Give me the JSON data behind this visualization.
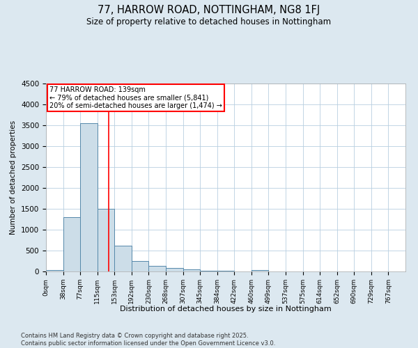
{
  "title1": "77, HARROW ROAD, NOTTINGHAM, NG8 1FJ",
  "title2": "Size of property relative to detached houses in Nottingham",
  "xlabel": "Distribution of detached houses by size in Nottingham",
  "ylabel": "Number of detached properties",
  "bin_labels": [
    "0sqm",
    "38sqm",
    "77sqm",
    "115sqm",
    "153sqm",
    "192sqm",
    "230sqm",
    "268sqm",
    "307sqm",
    "345sqm",
    "384sqm",
    "422sqm",
    "460sqm",
    "499sqm",
    "537sqm",
    "575sqm",
    "614sqm",
    "652sqm",
    "690sqm",
    "729sqm",
    "767sqm"
  ],
  "bar_heights": [
    30,
    1300,
    3550,
    1500,
    620,
    250,
    140,
    85,
    50,
    20,
    10,
    5,
    30,
    5,
    2,
    2,
    1,
    1,
    1,
    1,
    0
  ],
  "bar_color": "#ccdde8",
  "bar_edge_color": "#5588aa",
  "red_line_x": 3.65,
  "property_label": "77 HARROW ROAD: 139sqm",
  "annotation_line1": "← 79% of detached houses are smaller (5,841)",
  "annotation_line2": "20% of semi-detached houses are larger (1,474) →",
  "ylim": [
    0,
    4500
  ],
  "yticks": [
    0,
    500,
    1000,
    1500,
    2000,
    2500,
    3000,
    3500,
    4000,
    4500
  ],
  "footer1": "Contains HM Land Registry data © Crown copyright and database right 2025.",
  "footer2": "Contains public sector information licensed under the Open Government Licence v3.0.",
  "bg_color": "#dce8f0",
  "plot_bg_color": "#ffffff",
  "grid_color": "#b8cfe0"
}
